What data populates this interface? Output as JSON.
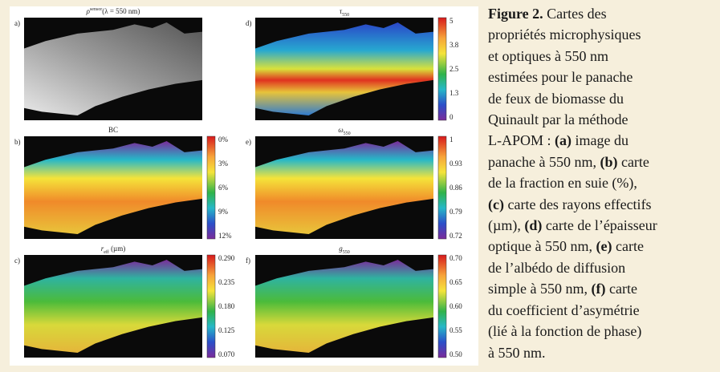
{
  "figure": {
    "panels": [
      {
        "letter": "a)",
        "title": {
          "base": "ρ",
          "sup": "sensor",
          "rest": "(λ = 550 nm)"
        },
        "colorbar": []
      },
      {
        "letter": "d)",
        "title": {
          "base": "τ",
          "sub": "550"
        },
        "colorbar": [
          "5",
          "3.8",
          "2.5",
          "1.3",
          "0"
        ]
      },
      {
        "letter": "b)",
        "title": {
          "base": "BC"
        },
        "colorbar": [
          "0%",
          "3%",
          "6%",
          "9%",
          "12%"
        ]
      },
      {
        "letter": "e)",
        "title": {
          "base": "ω",
          "sub": "550"
        },
        "colorbar": [
          "1",
          "0.93",
          "0.86",
          "0.79",
          "0.72"
        ]
      },
      {
        "letter": "c)",
        "title": {
          "base": "r",
          "sub": "eff",
          "rest": " (µm)"
        },
        "colorbar": [
          "0.290",
          "0.235",
          "0.180",
          "0.125",
          "0.070"
        ]
      },
      {
        "letter": "f)",
        "title": {
          "base": "g",
          "sub": "550"
        },
        "colorbar": [
          "0.70",
          "0.65",
          "0.60",
          "0.55",
          "0.50"
        ]
      }
    ]
  },
  "caption": {
    "lines": [
      [
        {
          "text": "Figure 2.",
          "bold": true
        },
        {
          "text": " Cartes des"
        }
      ],
      [
        {
          "text": "propriétés microphysiques"
        }
      ],
      [
        {
          "text": "et optiques à 550 nm"
        }
      ],
      [
        {
          "text": "estimées pour le panache"
        }
      ],
      [
        {
          "text": "de feux de biomasse du"
        }
      ],
      [
        {
          "text": "Quinault par la méthode"
        }
      ],
      [
        {
          "text": "L-APOM : "
        },
        {
          "text": "(a)",
          "bold": true
        },
        {
          "text": " image du"
        }
      ],
      [
        {
          "text": "panache à 550 nm, "
        },
        {
          "text": "(b)",
          "bold": true
        },
        {
          "text": " carte"
        }
      ],
      [
        {
          "text": "de la fraction en suie (%),"
        }
      ],
      [
        {
          "text": "(c)",
          "bold": true
        },
        {
          "text": " carte des rayons effectifs"
        }
      ],
      [
        {
          "text": "(µm), "
        },
        {
          "text": "(d)",
          "bold": true
        },
        {
          "text": " carte de l’épaisseur"
        }
      ],
      [
        {
          "text": "optique à 550 nm, "
        },
        {
          "text": "(e)",
          "bold": true
        },
        {
          "text": " carte"
        }
      ],
      [
        {
          "text": "de l’albédo de diffusion"
        }
      ],
      [
        {
          "text": "simple à 550 nm, "
        },
        {
          "text": "(f)",
          "bold": true
        },
        {
          "text": " carte"
        }
      ],
      [
        {
          "text": "du coefficient d’asymétrie"
        }
      ],
      [
        {
          "text": "(lié à la fonction de phase)"
        }
      ],
      [
        {
          "text": "à 550 nm."
        }
      ]
    ]
  }
}
